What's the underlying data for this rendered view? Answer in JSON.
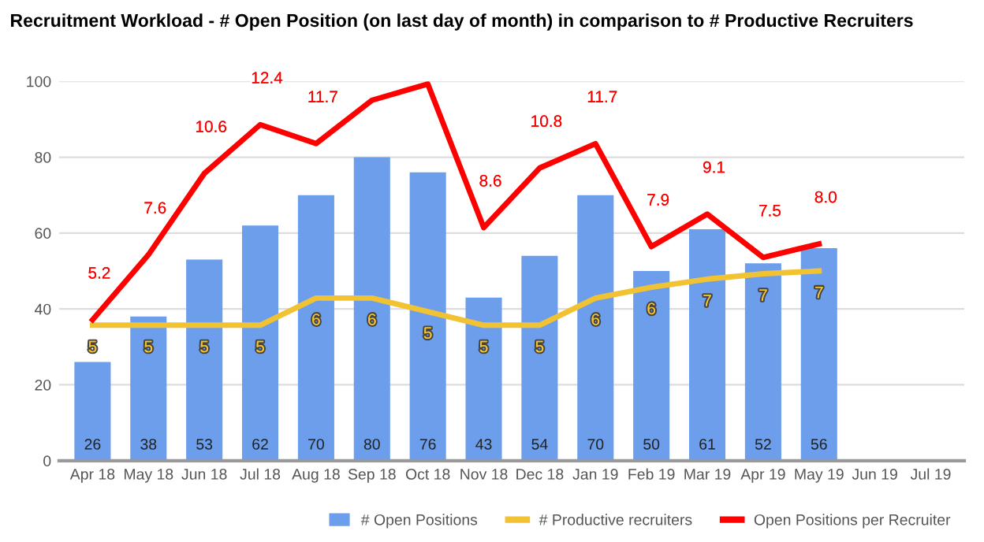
{
  "chart_data": {
    "type": "bar",
    "title": "Recruitment Workload - # Open Position (on last day of month) in comparison to # Productive Recruiters",
    "categories": [
      "Apr 18",
      "May 18",
      "Jun 18",
      "Jul 18",
      "Aug 18",
      "Sep 18",
      "Oct 18",
      "Nov 18",
      "Dec 18",
      "Jan 19",
      "Feb 19",
      "Mar 19",
      "Apr 19",
      "May 19",
      "Jun 19",
      "Jul 19"
    ],
    "series": [
      {
        "name": "# Open Positions",
        "color": "#6d9eeb",
        "values": [
          26,
          38,
          53,
          62,
          70,
          80,
          76,
          43,
          54,
          70,
          50,
          61,
          52,
          56,
          null,
          null
        ],
        "value_labels": [
          "26",
          "38",
          "53",
          "62",
          "70",
          "80",
          "76",
          "43",
          "54",
          "70",
          "50",
          "61",
          "52",
          "56",
          null,
          null
        ]
      },
      {
        "name": "# Productive recruiters",
        "type": "line",
        "axis": "y2",
        "color": "#f1c232",
        "values": [
          5.0,
          5.0,
          5.0,
          5.0,
          6.0,
          6.0,
          5.5,
          5.0,
          5.0,
          6.0,
          6.4,
          6.7,
          6.9,
          7.0,
          null,
          null
        ],
        "value_labels": [
          "5",
          "5",
          "5",
          "5",
          "6",
          "6",
          "5",
          "5",
          "5",
          "6",
          "6",
          "7",
          "7",
          "7",
          null,
          null
        ]
      },
      {
        "name": "Open Positions per Recruiter",
        "type": "line",
        "axis": "y2",
        "color": "#ff0000",
        "values": [
          5.2,
          7.6,
          10.6,
          12.4,
          11.7,
          13.3,
          13.9,
          8.6,
          10.8,
          11.7,
          7.9,
          9.1,
          7.5,
          8.0,
          null,
          null
        ],
        "value_labels": [
          "5.2",
          "7.6",
          "10.6",
          "12.4",
          "11.7",
          null,
          null,
          "8.6",
          "10.8",
          "11.7",
          "7.9",
          "9.1",
          "7.5",
          "8.0",
          null,
          null
        ]
      }
    ],
    "ylim": [
      0,
      100
    ],
    "yticks": [
      0,
      20,
      40,
      60,
      80,
      100
    ],
    "y2lim": [
      0,
      14
    ],
    "grid": "y",
    "legend": "bottom right"
  }
}
